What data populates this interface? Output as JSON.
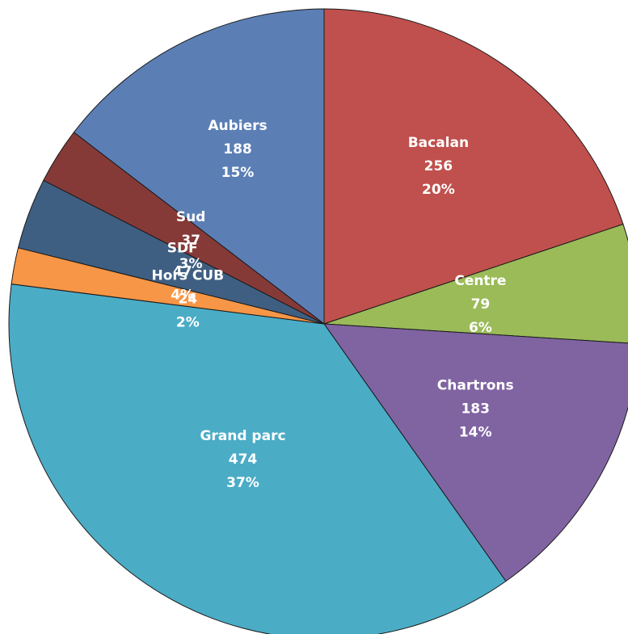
{
  "chart_data": {
    "type": "pie",
    "title": "",
    "start_angle_deg": 90,
    "direction": "clockwise",
    "slices": [
      {
        "label": "Bacalan",
        "value": 256,
        "percent": "20%",
        "color": "#c0504d"
      },
      {
        "label": "Centre",
        "value": 79,
        "percent": "6%",
        "color": "#9bbb59"
      },
      {
        "label": "Chartrons",
        "value": 183,
        "percent": "14%",
        "color": "#8064a2"
      },
      {
        "label": "Grand parc",
        "value": 474,
        "percent": "37%",
        "color": "#4bacc6"
      },
      {
        "label": "Hors CUB",
        "value": 24,
        "percent": "2%",
        "color": "#f79646"
      },
      {
        "label": "SDF",
        "value": 47,
        "percent": "4%",
        "color": "#3f5f82"
      },
      {
        "label": "Sud",
        "value": 37,
        "percent": "3%",
        "color": "#863a38"
      },
      {
        "label": "Aubiers",
        "value": 188,
        "percent": "15%",
        "color": "#5b7fb5"
      }
    ]
  }
}
